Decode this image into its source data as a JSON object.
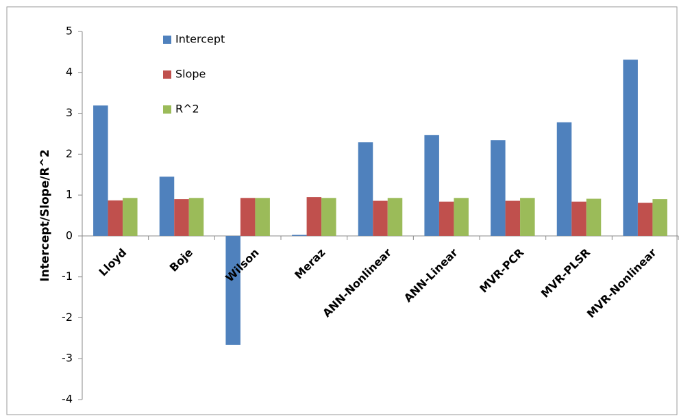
{
  "chart_data": {
    "type": "bar",
    "y_label": "Intercept/Slope/R^2",
    "categories": [
      "Lloyd",
      "Boje",
      "Wilson",
      "Meraz",
      "ANN-Nonlinear",
      "ANN-Linear",
      "MVR-PCR",
      "MVR-PLSR",
      "MVR-Nonlinear"
    ],
    "series": [
      {
        "name": "Intercept",
        "color": "#4f81bd",
        "values": [
          3.19,
          1.45,
          -2.66,
          0.03,
          2.29,
          2.47,
          2.34,
          2.78,
          4.31
        ]
      },
      {
        "name": "Slope",
        "color": "#c0504d",
        "values": [
          0.87,
          0.9,
          0.93,
          0.95,
          0.86,
          0.84,
          0.86,
          0.84,
          0.81
        ]
      },
      {
        "name": "R^2",
        "color": "#9bbb59",
        "values": [
          0.93,
          0.93,
          0.93,
          0.93,
          0.93,
          0.93,
          0.93,
          0.91,
          0.9
        ]
      }
    ],
    "ylim": [
      -4,
      5
    ],
    "yticks": [
      -4,
      -3,
      -2,
      -1,
      0,
      1,
      2,
      3,
      4,
      5
    ],
    "grid": false,
    "legend": "top-left"
  }
}
